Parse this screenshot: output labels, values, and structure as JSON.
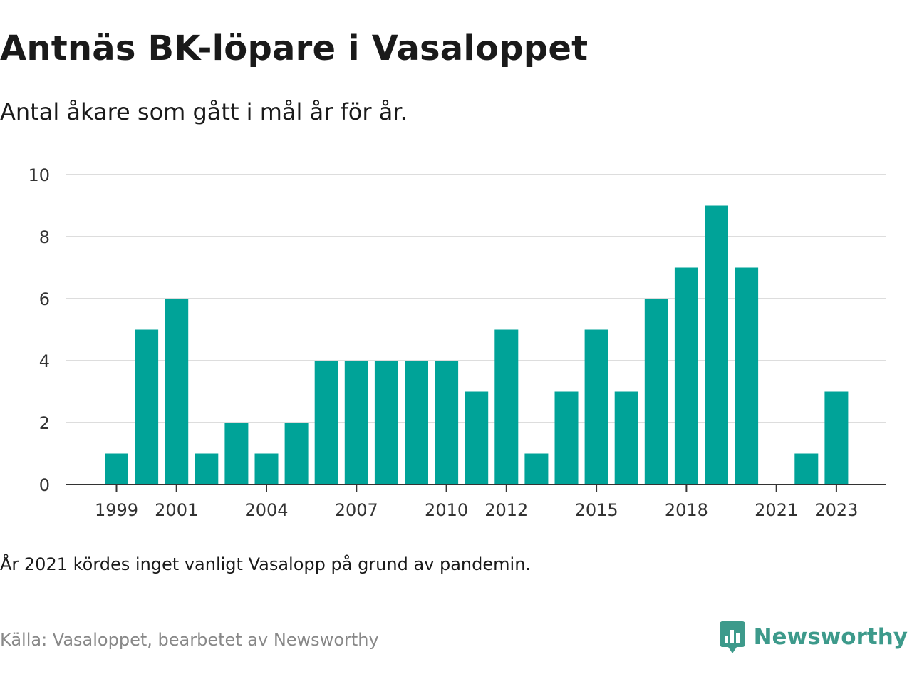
{
  "header": {
    "title": "Antnäs BK-löpare i Vasaloppet",
    "subtitle": "Antal åkare som gått i mål år för år."
  },
  "footer": {
    "note": "År 2021 kördes inget vanligt Vasalopp på grund av pandemin.",
    "source": "Källa: Vasaloppet, bearbetet av Newsworthy",
    "brand": "Newsworthy",
    "brand_icon": "chart-bubble-icon"
  },
  "colors": {
    "bar": "#00a398",
    "brand": "#3d9a8b",
    "grid": "#dddddd",
    "axis": "#333333"
  },
  "chart_data": {
    "type": "bar",
    "x": [
      1998,
      1999,
      2000,
      2001,
      2002,
      2003,
      2004,
      2005,
      2006,
      2007,
      2008,
      2009,
      2010,
      2011,
      2012,
      2013,
      2014,
      2015,
      2016,
      2017,
      2018,
      2019,
      2020,
      2021,
      2022,
      2023
    ],
    "values": [
      0,
      1,
      5,
      6,
      1,
      2,
      1,
      2,
      4,
      4,
      4,
      4,
      4,
      3,
      5,
      1,
      3,
      5,
      3,
      6,
      7,
      9,
      7,
      0,
      1,
      3
    ],
    "x_ticks": [
      "1999",
      "2001",
      "2004",
      "2007",
      "2010",
      "2012",
      "2015",
      "2018",
      "2021",
      "2023"
    ],
    "y_ticks": [
      "0",
      "2",
      "4",
      "6",
      "8",
      "10"
    ],
    "ylim": [
      0,
      10
    ],
    "grid": true,
    "legend": "none",
    "xlabel": "",
    "ylabel": ""
  }
}
